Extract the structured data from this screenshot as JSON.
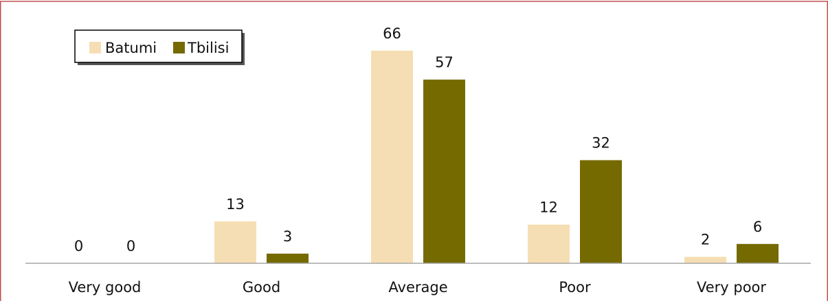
{
  "chart_data": {
    "type": "bar",
    "title": "",
    "xlabel": "",
    "ylabel": "",
    "categories": [
      "Very good",
      "Good",
      "Average",
      "Poor",
      "Very poor"
    ],
    "series": [
      {
        "name": "Batumi",
        "color": "#f5deb3",
        "values": [
          0,
          13,
          66,
          12,
          2
        ]
      },
      {
        "name": "Tbilisi",
        "color": "#756a00",
        "values": [
          0,
          3,
          57,
          32,
          6
        ]
      }
    ],
    "ylim": [
      0,
      70
    ],
    "grid": false,
    "legend_placement": "top-left",
    "frame_color": "#c0504d",
    "axis_color": "#a6a6a6"
  }
}
